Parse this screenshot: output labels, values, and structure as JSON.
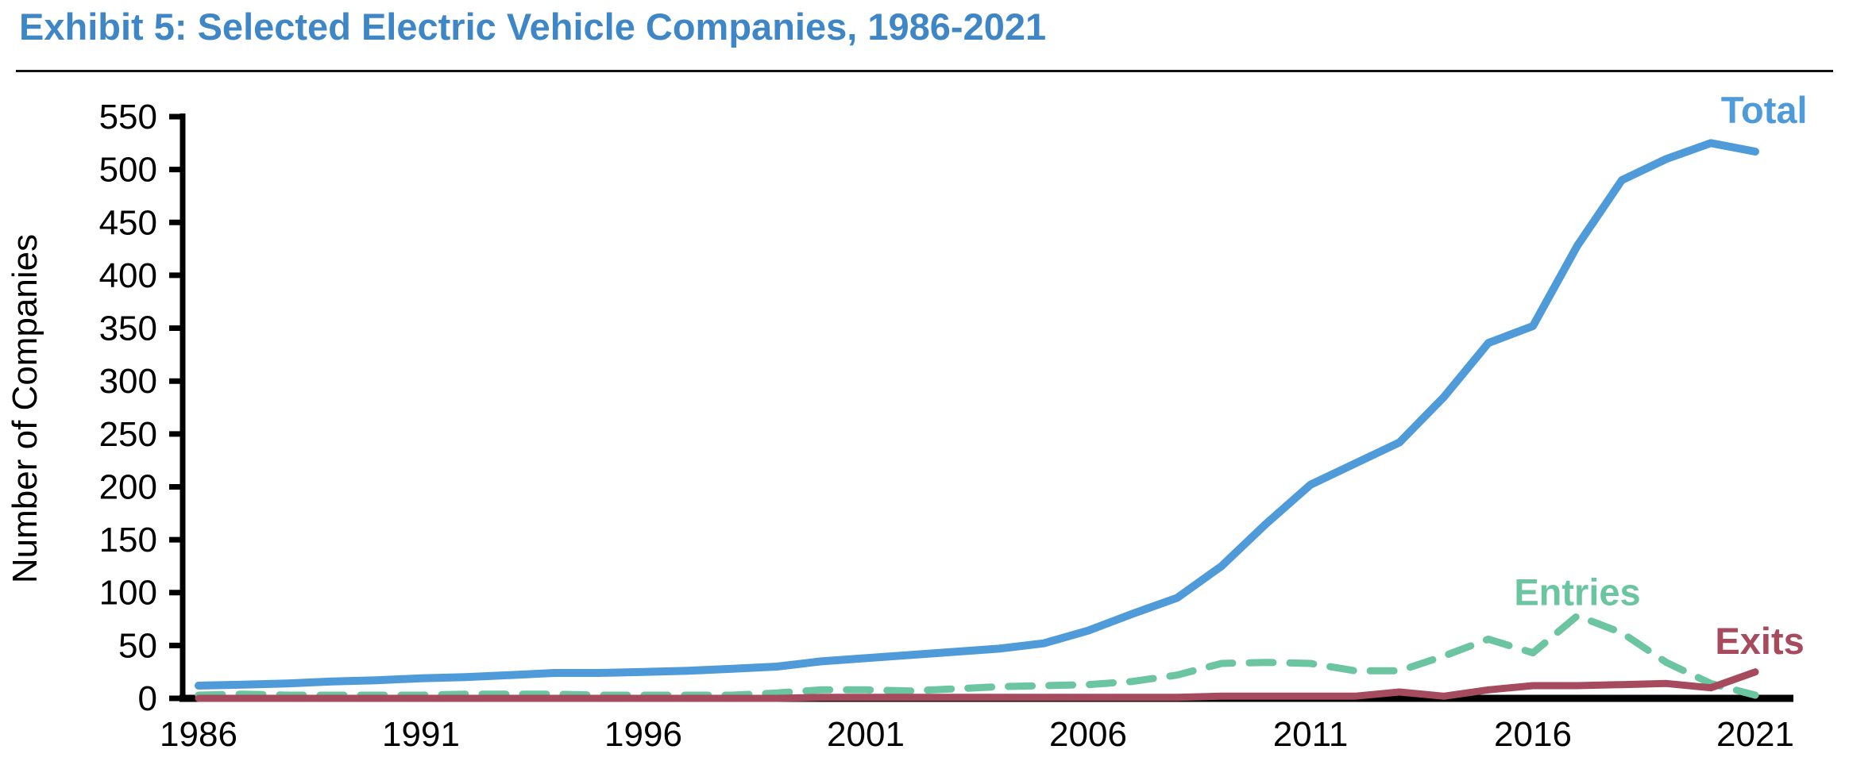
{
  "header": {
    "title": "Exhibit 5: Selected Electric Vehicle Companies, 1986-2021"
  },
  "colors": {
    "title": "#3F86C6",
    "axis": "#000000",
    "tick_text": "#000000",
    "total": "#4F9AD8",
    "entries": "#6CC5A1",
    "exits": "#A64A5E"
  },
  "chart_data": {
    "type": "line",
    "title": "Exhibit 5: Selected Electric Vehicle Companies, 1986-2021",
    "xlabel": "",
    "ylabel": "Number of Companies",
    "ylim": [
      0,
      550
    ],
    "ytick_step": 50,
    "ytick_labels": [
      "0",
      "50",
      "100",
      "150",
      "200",
      "250",
      "300",
      "350",
      "400",
      "450",
      "500",
      "550"
    ],
    "xtick_labels": [
      "1986",
      "1991",
      "1996",
      "2001",
      "2006",
      "2011",
      "2016",
      "2021"
    ],
    "grid": false,
    "legend_position": "inline-labels",
    "x": [
      1986,
      1987,
      1988,
      1989,
      1990,
      1991,
      1992,
      1993,
      1994,
      1995,
      1996,
      1997,
      1998,
      1999,
      2000,
      2001,
      2002,
      2003,
      2004,
      2005,
      2006,
      2007,
      2008,
      2009,
      2010,
      2011,
      2012,
      2013,
      2014,
      2015,
      2016,
      2017,
      2018,
      2019,
      2020,
      2021
    ],
    "series": [
      {
        "name": "Total",
        "style": "solid",
        "color": "#4F9AD8",
        "values": [
          12,
          13,
          14,
          16,
          17,
          19,
          20,
          22,
          24,
          24,
          25,
          26,
          28,
          30,
          35,
          38,
          41,
          44,
          47,
          52,
          64,
          80,
          95,
          125,
          165,
          202,
          222,
          242,
          285,
          336,
          352,
          428,
          490,
          510,
          525,
          517
        ]
      },
      {
        "name": "Entries",
        "style": "dashed",
        "color": "#6CC5A1",
        "values": [
          3,
          4,
          3,
          3,
          3,
          3,
          4,
          4,
          4,
          3,
          3,
          3,
          3,
          5,
          8,
          8,
          7,
          9,
          11,
          12,
          13,
          16,
          22,
          33,
          34,
          33,
          26,
          26,
          40,
          56,
          43,
          78,
          62,
          34,
          14,
          3
        ]
      },
      {
        "name": "Exits",
        "style": "solid",
        "color": "#A64A5E",
        "values": [
          0,
          0,
          0,
          0,
          0,
          0,
          0,
          0,
          0,
          0,
          0,
          0,
          0,
          0,
          1,
          1,
          1,
          1,
          1,
          1,
          1,
          1,
          1,
          2,
          2,
          2,
          2,
          6,
          2,
          8,
          12,
          12,
          13,
          14,
          10,
          25
        ]
      }
    ],
    "series_labels": [
      {
        "text": "Total",
        "year": 2021.2,
        "value": 556
      },
      {
        "text": "Entries",
        "year": 2017.0,
        "value": 100
      },
      {
        "text": "Exits",
        "year": 2021.1,
        "value": 54
      }
    ]
  }
}
